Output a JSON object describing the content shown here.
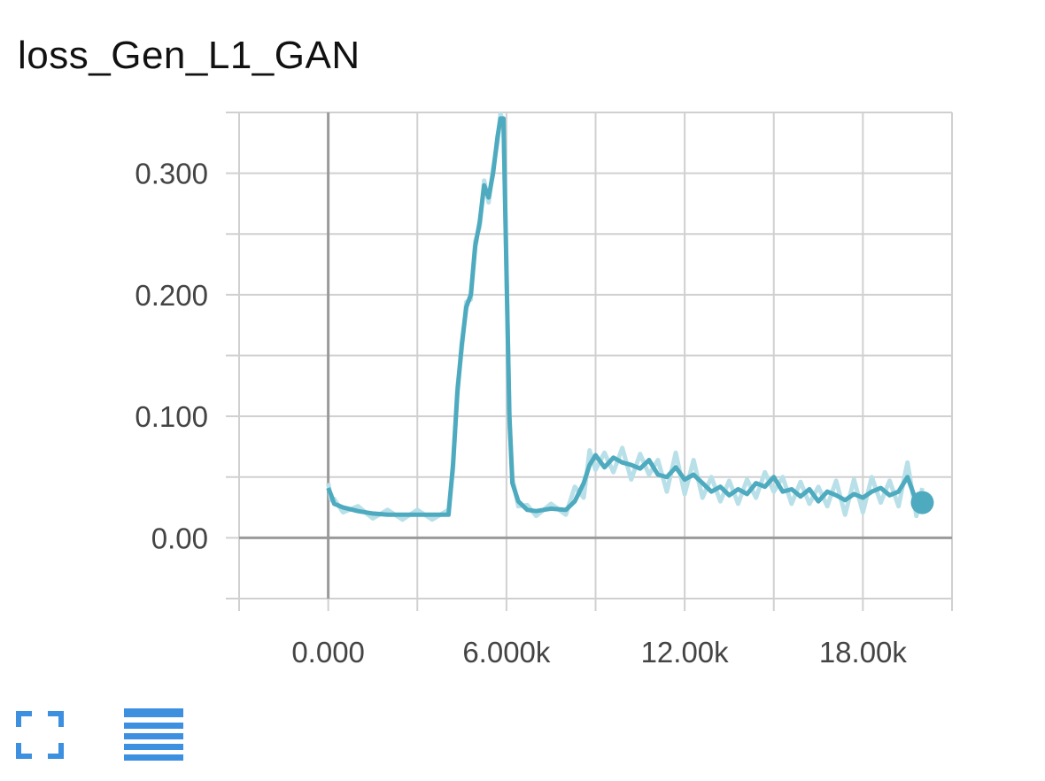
{
  "card": {
    "title": "loss_Gen_L1_GAN"
  },
  "colors": {
    "line": "#4eaabf",
    "line_raw": "#b9e0e8",
    "grid": "#d0d0d0",
    "axis": "#9a9a9a",
    "icon": "#3d8fe0"
  },
  "controls": {
    "expand_icon": "fullscreen-icon",
    "menu_icon": "menu-lines-icon"
  },
  "chart_data": {
    "type": "line",
    "title": "loss_Gen_L1_GAN",
    "xlabel": "",
    "ylabel": "",
    "xlim": [
      -3000,
      21000
    ],
    "ylim": [
      -0.05,
      0.35
    ],
    "grid": true,
    "x_ticks": [
      0,
      6000,
      12000,
      18000
    ],
    "x_tick_labels": [
      "0.000",
      "6.000k",
      "12.00k",
      "18.00k"
    ],
    "y_ticks": [
      0.0,
      0.1,
      0.2,
      0.3
    ],
    "y_tick_labels": [
      "0.00",
      "0.100",
      "0.200",
      "0.300"
    ],
    "series": [
      {
        "name": "",
        "points": [
          [
            0,
            0.041
          ],
          [
            100,
            0.035
          ],
          [
            200,
            0.028
          ],
          [
            500,
            0.025
          ],
          [
            1000,
            0.022
          ],
          [
            1500,
            0.02
          ],
          [
            2000,
            0.019
          ],
          [
            2500,
            0.019
          ],
          [
            3000,
            0.019
          ],
          [
            3500,
            0.019
          ],
          [
            4050,
            0.019
          ],
          [
            4200,
            0.06
          ],
          [
            4350,
            0.12
          ],
          [
            4500,
            0.16
          ],
          [
            4650,
            0.19
          ],
          [
            4800,
            0.2
          ],
          [
            4950,
            0.24
          ],
          [
            5100,
            0.26
          ],
          [
            5250,
            0.29
          ],
          [
            5400,
            0.28
          ],
          [
            5550,
            0.3
          ],
          [
            5700,
            0.33
          ],
          [
            5800,
            0.345
          ],
          [
            5900,
            0.345
          ],
          [
            6000,
            0.22
          ],
          [
            6100,
            0.1
          ],
          [
            6200,
            0.045
          ],
          [
            6400,
            0.03
          ],
          [
            6700,
            0.023
          ],
          [
            7000,
            0.022
          ],
          [
            7500,
            0.024
          ],
          [
            8000,
            0.023
          ],
          [
            8300,
            0.03
          ],
          [
            8600,
            0.045
          ],
          [
            8800,
            0.06
          ],
          [
            9000,
            0.068
          ],
          [
            9300,
            0.058
          ],
          [
            9600,
            0.066
          ],
          [
            9900,
            0.062
          ],
          [
            10200,
            0.06
          ],
          [
            10500,
            0.057
          ],
          [
            10800,
            0.064
          ],
          [
            11100,
            0.052
          ],
          [
            11400,
            0.05
          ],
          [
            11700,
            0.058
          ],
          [
            12000,
            0.048
          ],
          [
            12300,
            0.052
          ],
          [
            12600,
            0.045
          ],
          [
            12900,
            0.038
          ],
          [
            13200,
            0.042
          ],
          [
            13500,
            0.035
          ],
          [
            13800,
            0.04
          ],
          [
            14100,
            0.036
          ],
          [
            14400,
            0.045
          ],
          [
            14700,
            0.042
          ],
          [
            15000,
            0.05
          ],
          [
            15300,
            0.038
          ],
          [
            15600,
            0.04
          ],
          [
            15900,
            0.034
          ],
          [
            16200,
            0.04
          ],
          [
            16500,
            0.03
          ],
          [
            16800,
            0.038
          ],
          [
            17100,
            0.035
          ],
          [
            17400,
            0.031
          ],
          [
            17700,
            0.036
          ],
          [
            18000,
            0.033
          ],
          [
            18300,
            0.038
          ],
          [
            18600,
            0.041
          ],
          [
            18900,
            0.035
          ],
          [
            19200,
            0.038
          ],
          [
            19500,
            0.05
          ],
          [
            19800,
            0.03
          ],
          [
            20000,
            0.029
          ]
        ]
      }
    ]
  }
}
